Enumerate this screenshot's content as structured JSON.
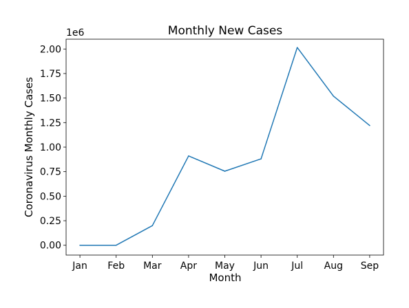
{
  "chart_data": {
    "type": "line",
    "title": "Monthly New Cases",
    "xlabel": "Month",
    "ylabel": "Coronavirus Monthly Cases",
    "y_offset_label": "1e6",
    "categories": [
      "Jan",
      "Feb",
      "Mar",
      "Apr",
      "May",
      "Jun",
      "Jul",
      "Aug",
      "Sep"
    ],
    "series": [
      {
        "values": [
          0,
          0,
          200000,
          910000,
          755000,
          880000,
          2015000,
          1520000,
          1220000
        ],
        "color": "#1f77b4"
      }
    ],
    "ylim": [
      -100000,
      2100000
    ],
    "yticks": [
      0,
      250000,
      500000,
      750000,
      1000000,
      1250000,
      1500000,
      1750000,
      2000000
    ],
    "ytick_labels": [
      "0.00",
      "0.25",
      "0.50",
      "0.75",
      "1.00",
      "1.25",
      "1.50",
      "1.75",
      "2.00"
    ],
    "grid": false,
    "legend": "none"
  }
}
